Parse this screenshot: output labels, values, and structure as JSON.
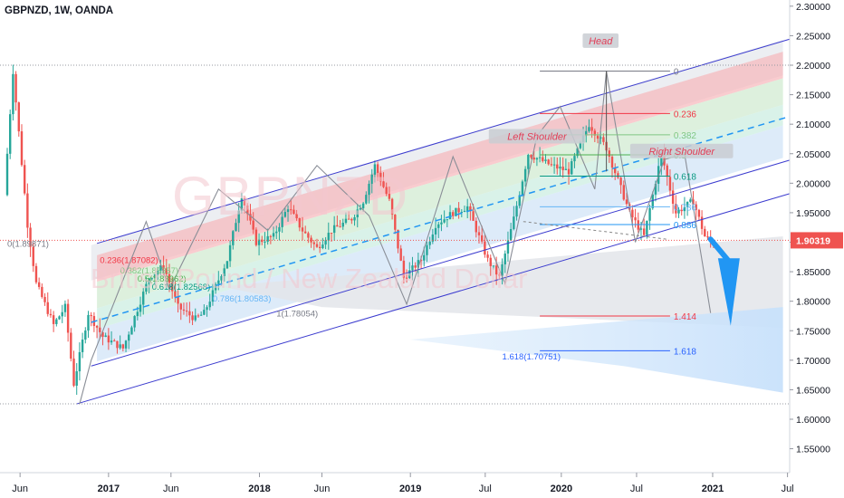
{
  "chart_header": {
    "symbol_line": "GBPNZD, 1W, OANDA"
  },
  "watermark": {
    "ticker": "GBPNZD",
    "name": "British Pound / New Zealand Dollar"
  },
  "colors": {
    "candle_up": "#26a69a",
    "candle_down": "#ef5350",
    "channel": "#3c3ccf",
    "price_tag": "#ef5350",
    "forecast_arrow": "#2196f3"
  },
  "chart_data": {
    "type": "candlestick",
    "symbol": "GBPNZD",
    "timeframe": "1W",
    "source": "OANDA",
    "y_axis": {
      "ticks": [
        "2.30000",
        "2.25000",
        "2.20000",
        "2.15000",
        "2.10000",
        "2.05000",
        "2.00000",
        "1.95000",
        "1.90000",
        "1.85000",
        "1.80000",
        "1.75000",
        "1.70000",
        "1.65000",
        "1.60000",
        "1.55000"
      ],
      "range": [
        1.535,
        2.305
      ]
    },
    "x_axis": {
      "ticks": [
        "Jun",
        "2017",
        "Jun",
        "2018",
        "Jun",
        "2019",
        "Jul",
        "2020",
        "Jul",
        "2021",
        "Jul"
      ]
    },
    "last_price": "1.90319",
    "price_path": [
      [
        "2016-05-01",
        1.98
      ],
      [
        "2016-05-22",
        2.19
      ],
      [
        "2016-06-26",
        1.93
      ],
      [
        "2016-07-17",
        1.83
      ],
      [
        "2016-08-28",
        1.76
      ],
      [
        "2016-09-25",
        1.79
      ],
      [
        "2016-10-16",
        1.66
      ],
      [
        "2016-11-20",
        1.78
      ],
      [
        "2016-12-25",
        1.74
      ],
      [
        "2017-02-12",
        1.72
      ],
      [
        "2017-04-16",
        1.84
      ],
      [
        "2017-05-21",
        1.86
      ],
      [
        "2017-06-25",
        1.79
      ],
      [
        "2017-08-06",
        1.77
      ],
      [
        "2017-08-27",
        1.78
      ],
      [
        "2017-10-22",
        1.87
      ],
      [
        "2017-11-26",
        1.98
      ],
      [
        "2017-12-31",
        1.9
      ],
      [
        "2018-02-11",
        1.91
      ],
      [
        "2018-03-18",
        1.96
      ],
      [
        "2018-04-22",
        1.92
      ],
      [
        "2018-05-27",
        1.89
      ],
      [
        "2018-07-01",
        1.92
      ],
      [
        "2018-08-19",
        1.94
      ],
      [
        "2018-09-16",
        1.97
      ],
      [
        "2018-10-14",
        2.03
      ],
      [
        "2018-11-18",
        1.97
      ],
      [
        "2018-12-23",
        1.84
      ],
      [
        "2019-02-03",
        1.87
      ],
      [
        "2019-03-10",
        1.93
      ],
      [
        "2019-04-21",
        1.95
      ],
      [
        "2019-05-26",
        1.96
      ],
      [
        "2019-07-14",
        1.87
      ],
      [
        "2019-08-11",
        1.84
      ],
      [
        "2019-09-15",
        1.94
      ],
      [
        "2019-10-20",
        2.05
      ],
      [
        "2019-12-15",
        2.03
      ],
      [
        "2020-01-26",
        2.02
      ],
      [
        "2020-03-15",
        2.1
      ],
      [
        "2020-04-26",
        2.06
      ],
      [
        "2020-06-21",
        1.95
      ],
      [
        "2020-07-26",
        1.91
      ],
      [
        "2020-09-06",
        2.05
      ],
      [
        "2020-10-11",
        1.95
      ],
      [
        "2020-11-22",
        1.97
      ],
      [
        "2020-12-20",
        1.91
      ],
      [
        "2021-01-03",
        1.9
      ]
    ],
    "fib_extension_left": [
      {
        "level": "0",
        "price": "1.89871",
        "color": "#787b86",
        "label_x": "2016-05-01"
      },
      {
        "level": "0.236",
        "price": "1.87082",
        "color": "#f23645",
        "label_x": "2016-12-11"
      },
      {
        "level": "0.382",
        "price": "1.85357",
        "color": "#81c784",
        "label_x": "2017-01-29"
      },
      {
        "level": "0.5",
        "price": "1.83962",
        "color": "#4caf50",
        "label_x": "2017-03-12"
      },
      {
        "level": "0.618",
        "price": "1.82568",
        "color": "#089981",
        "label_x": "2017-04-16"
      },
      {
        "level": "0.786",
        "price": "1.80583",
        "color": "#64b5f6",
        "label_x": "2017-09-10"
      },
      {
        "level": "1",
        "price": "1.78054",
        "color": "#787b86",
        "label_x": "2018-02-11"
      },
      {
        "level": "1.618",
        "price": "1.70751",
        "color": "#2962ff",
        "label_x": "2019-08-11"
      }
    ],
    "fib_retracement_right": [
      {
        "level": "0",
        "price": 2.19,
        "color": "#787b86"
      },
      {
        "level": "0.236",
        "price": 2.118,
        "color": "#f23645"
      },
      {
        "level": "0.382",
        "price": 2.082,
        "color": "#81c784"
      },
      {
        "level": "0.5",
        "price": 2.048,
        "color": "#4caf50"
      },
      {
        "level": "0.618",
        "price": 2.012,
        "color": "#089981"
      },
      {
        "level": "0.786",
        "price": 1.96,
        "color": "#64b5f6"
      },
      {
        "level": "0.886",
        "price": 1.93,
        "color": "#2196f3"
      },
      {
        "level": "1.414",
        "price": 1.775,
        "color": "#f23645"
      },
      {
        "level": "1.618",
        "price": 1.716,
        "color": "#2962ff"
      }
    ],
    "annotations": [
      {
        "text": "Head",
        "date": "2020-04-05",
        "price": 2.24
      },
      {
        "text": "Left Shoulder",
        "date": "2019-11-03",
        "price": 2.078
      },
      {
        "text": "Right Shoulder",
        "date": "2020-10-18",
        "price": 2.053
      }
    ]
  }
}
